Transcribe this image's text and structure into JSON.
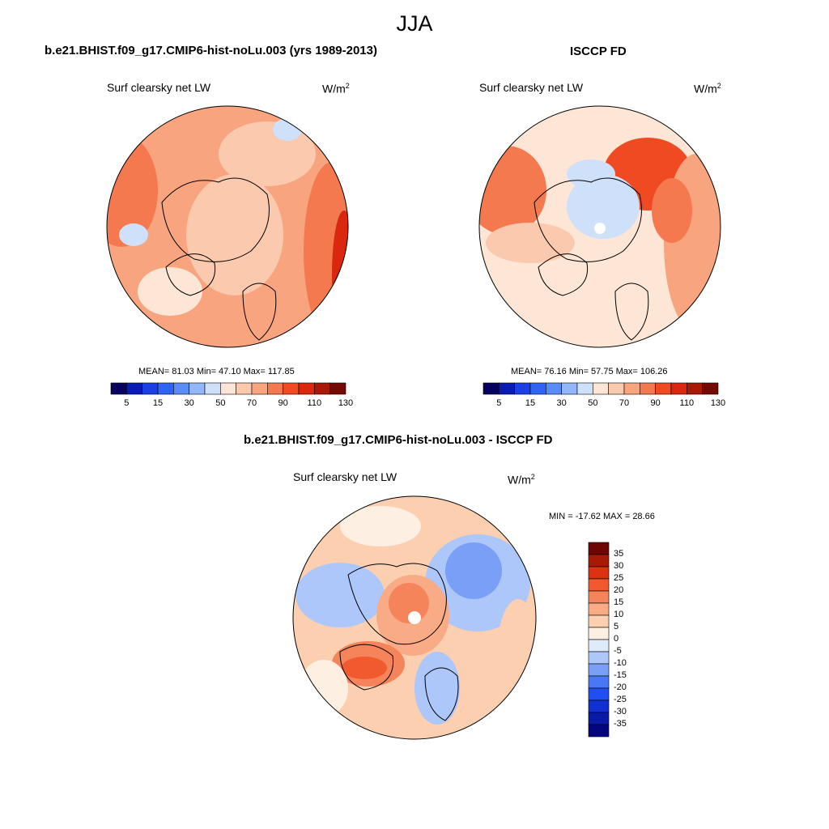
{
  "season": "JJA",
  "units_base": "W/m",
  "units_exp": "2",
  "colors": {
    "seq": [
      "#08005e",
      "#0a1ab4",
      "#1c3fe6",
      "#2f63f4",
      "#5a8cf9",
      "#93b7fb",
      "#cfe0fb",
      "#fde6d5",
      "#fbc9ad",
      "#f8a47f",
      "#f5794f",
      "#f04a23",
      "#d9280e",
      "#a81806",
      "#740802"
    ],
    "div": [
      "#050580",
      "#0a1aa8",
      "#1030d0",
      "#1f4ef2",
      "#4a78f5",
      "#7a9ff7",
      "#adc7fa",
      "#dfeafb",
      "#fdefe2",
      "#fbcfb0",
      "#f8ab85",
      "#f5845a",
      "#f15a2e",
      "#da3212",
      "#a71a06",
      "#6e0703"
    ]
  },
  "panels": [
    {
      "title": "b.e21.BHIST.f09_g17.CMIP6-hist-noLu.003 (yrs 1989-2013)",
      "label": "Surf clearsky net LW",
      "stats": "MEAN=  81.03  Min=  47.10  Max= 117.85"
    },
    {
      "title": "ISCCP FD",
      "label": "Surf clearsky net LW",
      "stats": "MEAN=  76.16  Min=  57.75  Max= 106.26"
    },
    {
      "title": "b.e21.BHIST.f09_g17.CMIP6-hist-noLu.003 - ISCCP FD",
      "label": "Surf clearsky net LW",
      "stats": "MIN = -17.62 MAX =  28.66"
    }
  ],
  "chart_data": [
    {
      "type": "heatmap",
      "title": "b.e21.BHIST.f09_g17.CMIP6-hist-noLu.003 (yrs 1989-2013)",
      "variable": "Surf clearsky net LW",
      "units": "W/m2",
      "mean": 81.03,
      "min": 47.1,
      "max": 117.85,
      "colorbar_levels": [
        5,
        10,
        15,
        20,
        30,
        40,
        50,
        60,
        70,
        80,
        90,
        100,
        110,
        120,
        130
      ],
      "colorbar_labels": [
        "5",
        "15",
        "30",
        "50",
        "70",
        "90",
        "110",
        "130"
      ]
    },
    {
      "type": "heatmap",
      "title": "ISCCP FD",
      "variable": "Surf clearsky net LW",
      "units": "W/m2",
      "mean": 76.16,
      "min": 57.75,
      "max": 106.26,
      "colorbar_levels": [
        5,
        10,
        15,
        20,
        30,
        40,
        50,
        60,
        70,
        80,
        90,
        100,
        110,
        120,
        130
      ],
      "colorbar_labels": [
        "5",
        "15",
        "30",
        "50",
        "70",
        "90",
        "110",
        "130"
      ]
    },
    {
      "type": "heatmap",
      "title": "b.e21.BHIST.f09_g17.CMIP6-hist-noLu.003 - ISCCP FD",
      "variable": "Surf clearsky net LW",
      "units": "W/m2",
      "min": -17.62,
      "max": 28.66,
      "colorbar_labels": [
        "35",
        "30",
        "25",
        "20",
        "15",
        "10",
        "5",
        "0",
        "-5",
        "-10",
        "-15",
        "-20",
        "-25",
        "-30",
        "-35"
      ]
    }
  ]
}
